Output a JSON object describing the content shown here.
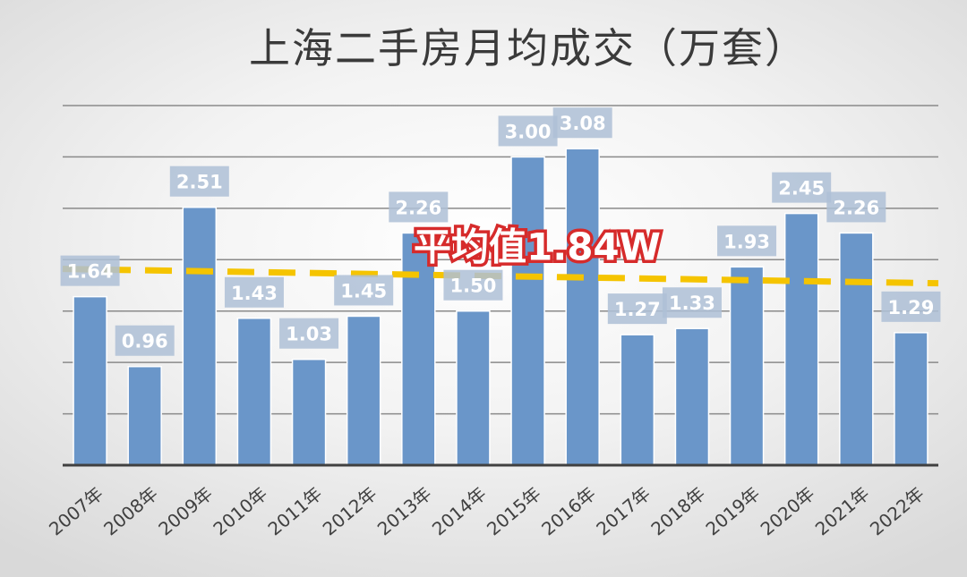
{
  "chart_data": {
    "type": "bar",
    "title": "上海二手房月均成交（万套）",
    "categories": [
      "2007年",
      "2008年",
      "2009年",
      "2010年",
      "2011年",
      "2012年",
      "2013年",
      "2014年",
      "2015年",
      "2016年",
      "2017年",
      "2018年",
      "2019年",
      "2020年",
      "2021年",
      "2022年"
    ],
    "values": [
      1.64,
      0.96,
      2.51,
      1.43,
      1.03,
      1.45,
      2.26,
      1.5,
      3.0,
      3.08,
      1.27,
      1.33,
      1.93,
      2.45,
      2.26,
      1.29
    ],
    "ylim": [
      0,
      3.5
    ],
    "grid": true,
    "legend": "none",
    "average": {
      "value": 1.84,
      "label": "平均值1.84W"
    },
    "colors": {
      "bar": "#6a96c9",
      "label_box": "#aebfd6",
      "average_line": "#f5c400",
      "average_label_outline": "#d62b2b",
      "grid": "#8a8a8a",
      "axis": "#404040"
    }
  }
}
